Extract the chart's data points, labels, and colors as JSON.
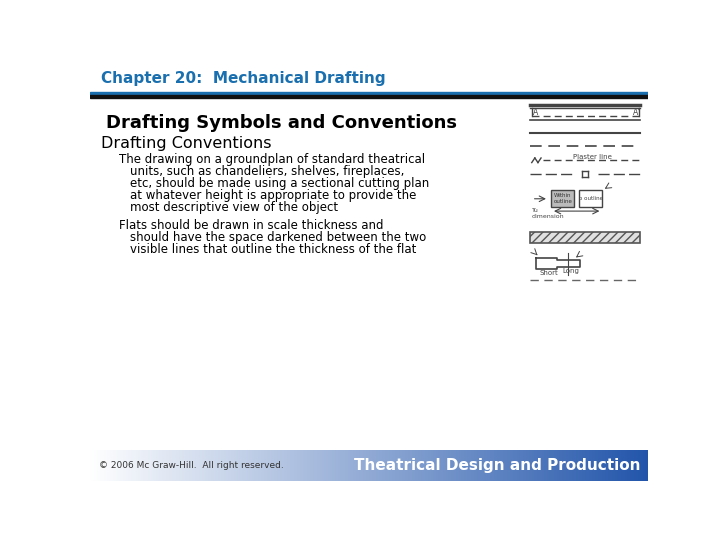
{
  "title_header": "Chapter 20:  Mechanical Drafting",
  "heading1": "Drafting Symbols and Conventions",
  "heading2": "Drafting Conventions",
  "bullet1_line1": "The drawing on a groundplan of standard theatrical",
  "bullet1_line2": "units, such as chandeliers, shelves, fireplaces,",
  "bullet1_line3": "etc, should be made using a sectional cutting plan",
  "bullet1_line4": "at whatever height is appropriate to provide the",
  "bullet1_line5": "most descriptive view of the object",
  "bullet2_line1": "Flats should be drawn in scale thickness and",
  "bullet2_line2": "should have the space darkened between the two",
  "bullet2_line3": "visible lines that outline the thickness of the flat",
  "footer_left": "© 2006 Mc Graw-Hill.  All right reserved.",
  "footer_right": "Theatrical Design and Production",
  "header_color": "#1a6faf",
  "blue_bar_color": "#1a6faf",
  "black_bar_color": "#111111",
  "bg_color": "#ffffff",
  "footer_bg_right": "#2255aa",
  "footer_text_color": "#ffffff",
  "text_color": "#000000",
  "diag_color": "#444444"
}
